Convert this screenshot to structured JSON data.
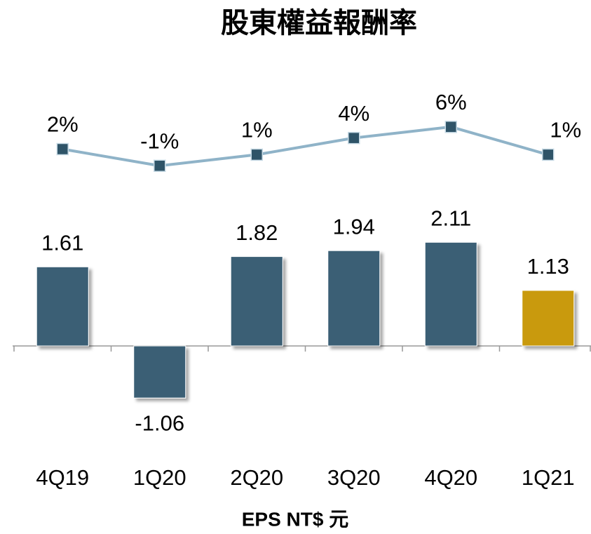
{
  "chart_data": {
    "type": "bar_line",
    "title": "股東權益報酬率",
    "x_label": "EPS NT$ 元",
    "categories": [
      "4Q19",
      "1Q20",
      "2Q20",
      "3Q20",
      "4Q20",
      "1Q21"
    ],
    "ylim": [
      -1.5,
      2.5
    ],
    "y2lim": [
      -4,
      8
    ],
    "series": [
      {
        "name": "EPS",
        "type": "bar",
        "values": [
          1.61,
          -1.06,
          1.82,
          1.94,
          2.11,
          1.13
        ],
        "colors": [
          "#3a5f75",
          "#3a5f75",
          "#3a5f75",
          "#3a5f75",
          "#3a5f75",
          "#c99a0a"
        ]
      },
      {
        "name": "ROE",
        "type": "line",
        "axis": "y2",
        "color": "#8fb3c8",
        "marker_color": "#2f5468",
        "values": [
          2,
          -1,
          1,
          4,
          6,
          1
        ],
        "value_labels": [
          "2%",
          "-1%",
          "1%",
          "4%",
          "6%",
          "1%"
        ]
      }
    ]
  }
}
